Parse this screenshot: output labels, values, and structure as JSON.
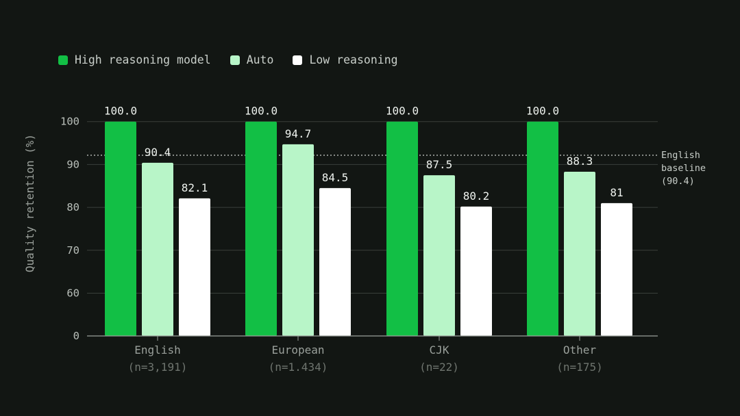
{
  "legend": [
    {
      "label": "High reasoning model",
      "color": "#12bf45"
    },
    {
      "label": "Auto",
      "color": "#b8f5c8"
    },
    {
      "label": "Low reasoning",
      "color": "#ffffff"
    }
  ],
  "chart_data": {
    "type": "bar",
    "ylabel": "Quality retention (%)",
    "ylim": [
      0,
      100
    ],
    "yticks": [
      0,
      60,
      70,
      80,
      90,
      100
    ],
    "categories": [
      "English",
      "European",
      "CJK",
      "Other"
    ],
    "category_sublabels": [
      "(n=3,191)",
      "(n=1.434)",
      "(n=22)",
      "(n=175)"
    ],
    "series": [
      {
        "name": "High reasoning model",
        "color": "#12bf45",
        "values": [
          100.0,
          100.0,
          100.0,
          100.0
        ],
        "labels": [
          "100.0",
          "100.0",
          "100.0",
          "100.0"
        ]
      },
      {
        "name": "Auto",
        "color": "#b8f5c8",
        "values": [
          90.4,
          94.7,
          87.5,
          88.3
        ],
        "labels": [
          "90.4",
          "94.7",
          "87.5",
          "88.3"
        ]
      },
      {
        "name": "Low reasoning",
        "color": "#ffffff",
        "values": [
          82.1,
          84.5,
          80.2,
          81
        ],
        "labels": [
          "82.1",
          "84.5",
          "80.2",
          "81"
        ]
      }
    ],
    "reference_line": {
      "value": 92,
      "label": [
        "English",
        "baseline",
        "(90.4)"
      ],
      "style": "dotted"
    },
    "grid": true,
    "legend_position": "top-left"
  }
}
